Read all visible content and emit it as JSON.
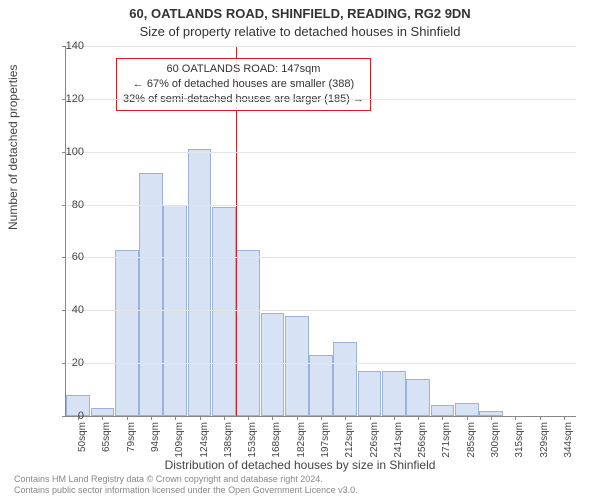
{
  "title_line1": "60, OATLANDS ROAD, SHINFIELD, READING, RG2 9DN",
  "title_line2": "Size of property relative to detached houses in Shinfield",
  "chart": {
    "type": "histogram",
    "ylabel": "Number of detached properties",
    "xlabel": "Distribution of detached houses by size in Shinfield",
    "ylim": [
      0,
      140
    ],
    "ytick_step": 20,
    "yticks": [
      0,
      20,
      40,
      60,
      80,
      100,
      120,
      140
    ],
    "bar_color": "#d7e2f4",
    "bar_border_color": "#9bb2d9",
    "background_color": "#ffffff",
    "grid_color": "#e5e5e5",
    "axis_color": "#888888",
    "marker_color": "#d62020",
    "marker_x_index": 7,
    "categories": [
      "50sqm",
      "65sqm",
      "79sqm",
      "94sqm",
      "109sqm",
      "124sqm",
      "138sqm",
      "153sqm",
      "168sqm",
      "182sqm",
      "197sqm",
      "212sqm",
      "226sqm",
      "241sqm",
      "256sqm",
      "271sqm",
      "285sqm",
      "300sqm",
      "315sqm",
      "329sqm",
      "344sqm"
    ],
    "values": [
      8,
      3,
      63,
      92,
      80,
      101,
      79,
      63,
      39,
      38,
      23,
      28,
      17,
      17,
      14,
      4,
      5,
      2,
      0,
      0,
      0
    ],
    "annotation": {
      "lines": [
        "60 OATLANDS ROAD: 147sqm",
        "← 67% of detached houses are smaller (388)",
        "32% of semi-detached houses are larger (185) →"
      ]
    }
  },
  "footer": {
    "line1": "Contains HM Land Registry data © Crown copyright and database right 2024.",
    "line2": "Contains public sector information licensed under the Open Government Licence v3.0."
  }
}
